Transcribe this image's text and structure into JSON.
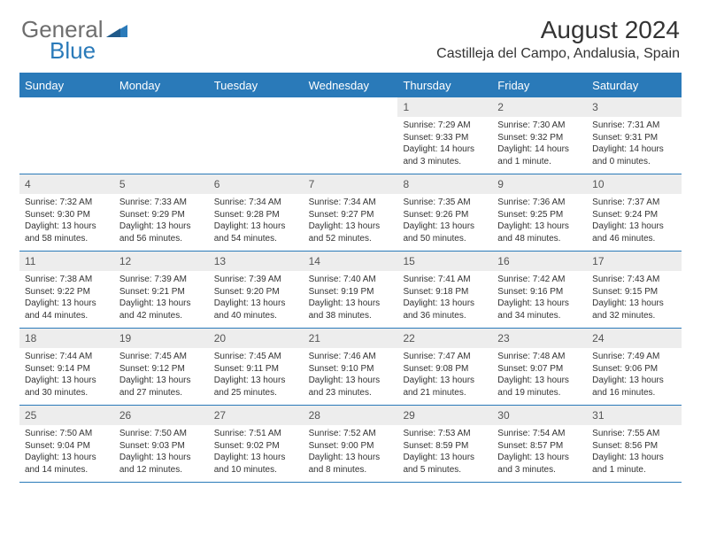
{
  "logo": {
    "general": "General",
    "blue": "Blue"
  },
  "title": "August 2024",
  "location": "Castilleja del Campo, Andalusia, Spain",
  "colors": {
    "accent": "#2a7ab9",
    "header_text": "#ffffff",
    "daynum_bg": "#ededed",
    "body_text": "#333333",
    "logo_gray": "#6e6e6e"
  },
  "day_names": [
    "Sunday",
    "Monday",
    "Tuesday",
    "Wednesday",
    "Thursday",
    "Friday",
    "Saturday"
  ],
  "weeks": [
    [
      null,
      null,
      null,
      null,
      {
        "n": "1",
        "sr": "7:29 AM",
        "ss": "9:33 PM",
        "dl": "14 hours and 3 minutes."
      },
      {
        "n": "2",
        "sr": "7:30 AM",
        "ss": "9:32 PM",
        "dl": "14 hours and 1 minute."
      },
      {
        "n": "3",
        "sr": "7:31 AM",
        "ss": "9:31 PM",
        "dl": "14 hours and 0 minutes."
      }
    ],
    [
      {
        "n": "4",
        "sr": "7:32 AM",
        "ss": "9:30 PM",
        "dl": "13 hours and 58 minutes."
      },
      {
        "n": "5",
        "sr": "7:33 AM",
        "ss": "9:29 PM",
        "dl": "13 hours and 56 minutes."
      },
      {
        "n": "6",
        "sr": "7:34 AM",
        "ss": "9:28 PM",
        "dl": "13 hours and 54 minutes."
      },
      {
        "n": "7",
        "sr": "7:34 AM",
        "ss": "9:27 PM",
        "dl": "13 hours and 52 minutes."
      },
      {
        "n": "8",
        "sr": "7:35 AM",
        "ss": "9:26 PM",
        "dl": "13 hours and 50 minutes."
      },
      {
        "n": "9",
        "sr": "7:36 AM",
        "ss": "9:25 PM",
        "dl": "13 hours and 48 minutes."
      },
      {
        "n": "10",
        "sr": "7:37 AM",
        "ss": "9:24 PM",
        "dl": "13 hours and 46 minutes."
      }
    ],
    [
      {
        "n": "11",
        "sr": "7:38 AM",
        "ss": "9:22 PM",
        "dl": "13 hours and 44 minutes."
      },
      {
        "n": "12",
        "sr": "7:39 AM",
        "ss": "9:21 PM",
        "dl": "13 hours and 42 minutes."
      },
      {
        "n": "13",
        "sr": "7:39 AM",
        "ss": "9:20 PM",
        "dl": "13 hours and 40 minutes."
      },
      {
        "n": "14",
        "sr": "7:40 AM",
        "ss": "9:19 PM",
        "dl": "13 hours and 38 minutes."
      },
      {
        "n": "15",
        "sr": "7:41 AM",
        "ss": "9:18 PM",
        "dl": "13 hours and 36 minutes."
      },
      {
        "n": "16",
        "sr": "7:42 AM",
        "ss": "9:16 PM",
        "dl": "13 hours and 34 minutes."
      },
      {
        "n": "17",
        "sr": "7:43 AM",
        "ss": "9:15 PM",
        "dl": "13 hours and 32 minutes."
      }
    ],
    [
      {
        "n": "18",
        "sr": "7:44 AM",
        "ss": "9:14 PM",
        "dl": "13 hours and 30 minutes."
      },
      {
        "n": "19",
        "sr": "7:45 AM",
        "ss": "9:12 PM",
        "dl": "13 hours and 27 minutes."
      },
      {
        "n": "20",
        "sr": "7:45 AM",
        "ss": "9:11 PM",
        "dl": "13 hours and 25 minutes."
      },
      {
        "n": "21",
        "sr": "7:46 AM",
        "ss": "9:10 PM",
        "dl": "13 hours and 23 minutes."
      },
      {
        "n": "22",
        "sr": "7:47 AM",
        "ss": "9:08 PM",
        "dl": "13 hours and 21 minutes."
      },
      {
        "n": "23",
        "sr": "7:48 AM",
        "ss": "9:07 PM",
        "dl": "13 hours and 19 minutes."
      },
      {
        "n": "24",
        "sr": "7:49 AM",
        "ss": "9:06 PM",
        "dl": "13 hours and 16 minutes."
      }
    ],
    [
      {
        "n": "25",
        "sr": "7:50 AM",
        "ss": "9:04 PM",
        "dl": "13 hours and 14 minutes."
      },
      {
        "n": "26",
        "sr": "7:50 AM",
        "ss": "9:03 PM",
        "dl": "13 hours and 12 minutes."
      },
      {
        "n": "27",
        "sr": "7:51 AM",
        "ss": "9:02 PM",
        "dl": "13 hours and 10 minutes."
      },
      {
        "n": "28",
        "sr": "7:52 AM",
        "ss": "9:00 PM",
        "dl": "13 hours and 8 minutes."
      },
      {
        "n": "29",
        "sr": "7:53 AM",
        "ss": "8:59 PM",
        "dl": "13 hours and 5 minutes."
      },
      {
        "n": "30",
        "sr": "7:54 AM",
        "ss": "8:57 PM",
        "dl": "13 hours and 3 minutes."
      },
      {
        "n": "31",
        "sr": "7:55 AM",
        "ss": "8:56 PM",
        "dl": "13 hours and 1 minute."
      }
    ]
  ],
  "labels": {
    "sunrise": "Sunrise: ",
    "sunset": "Sunset: ",
    "daylight": "Daylight: "
  }
}
